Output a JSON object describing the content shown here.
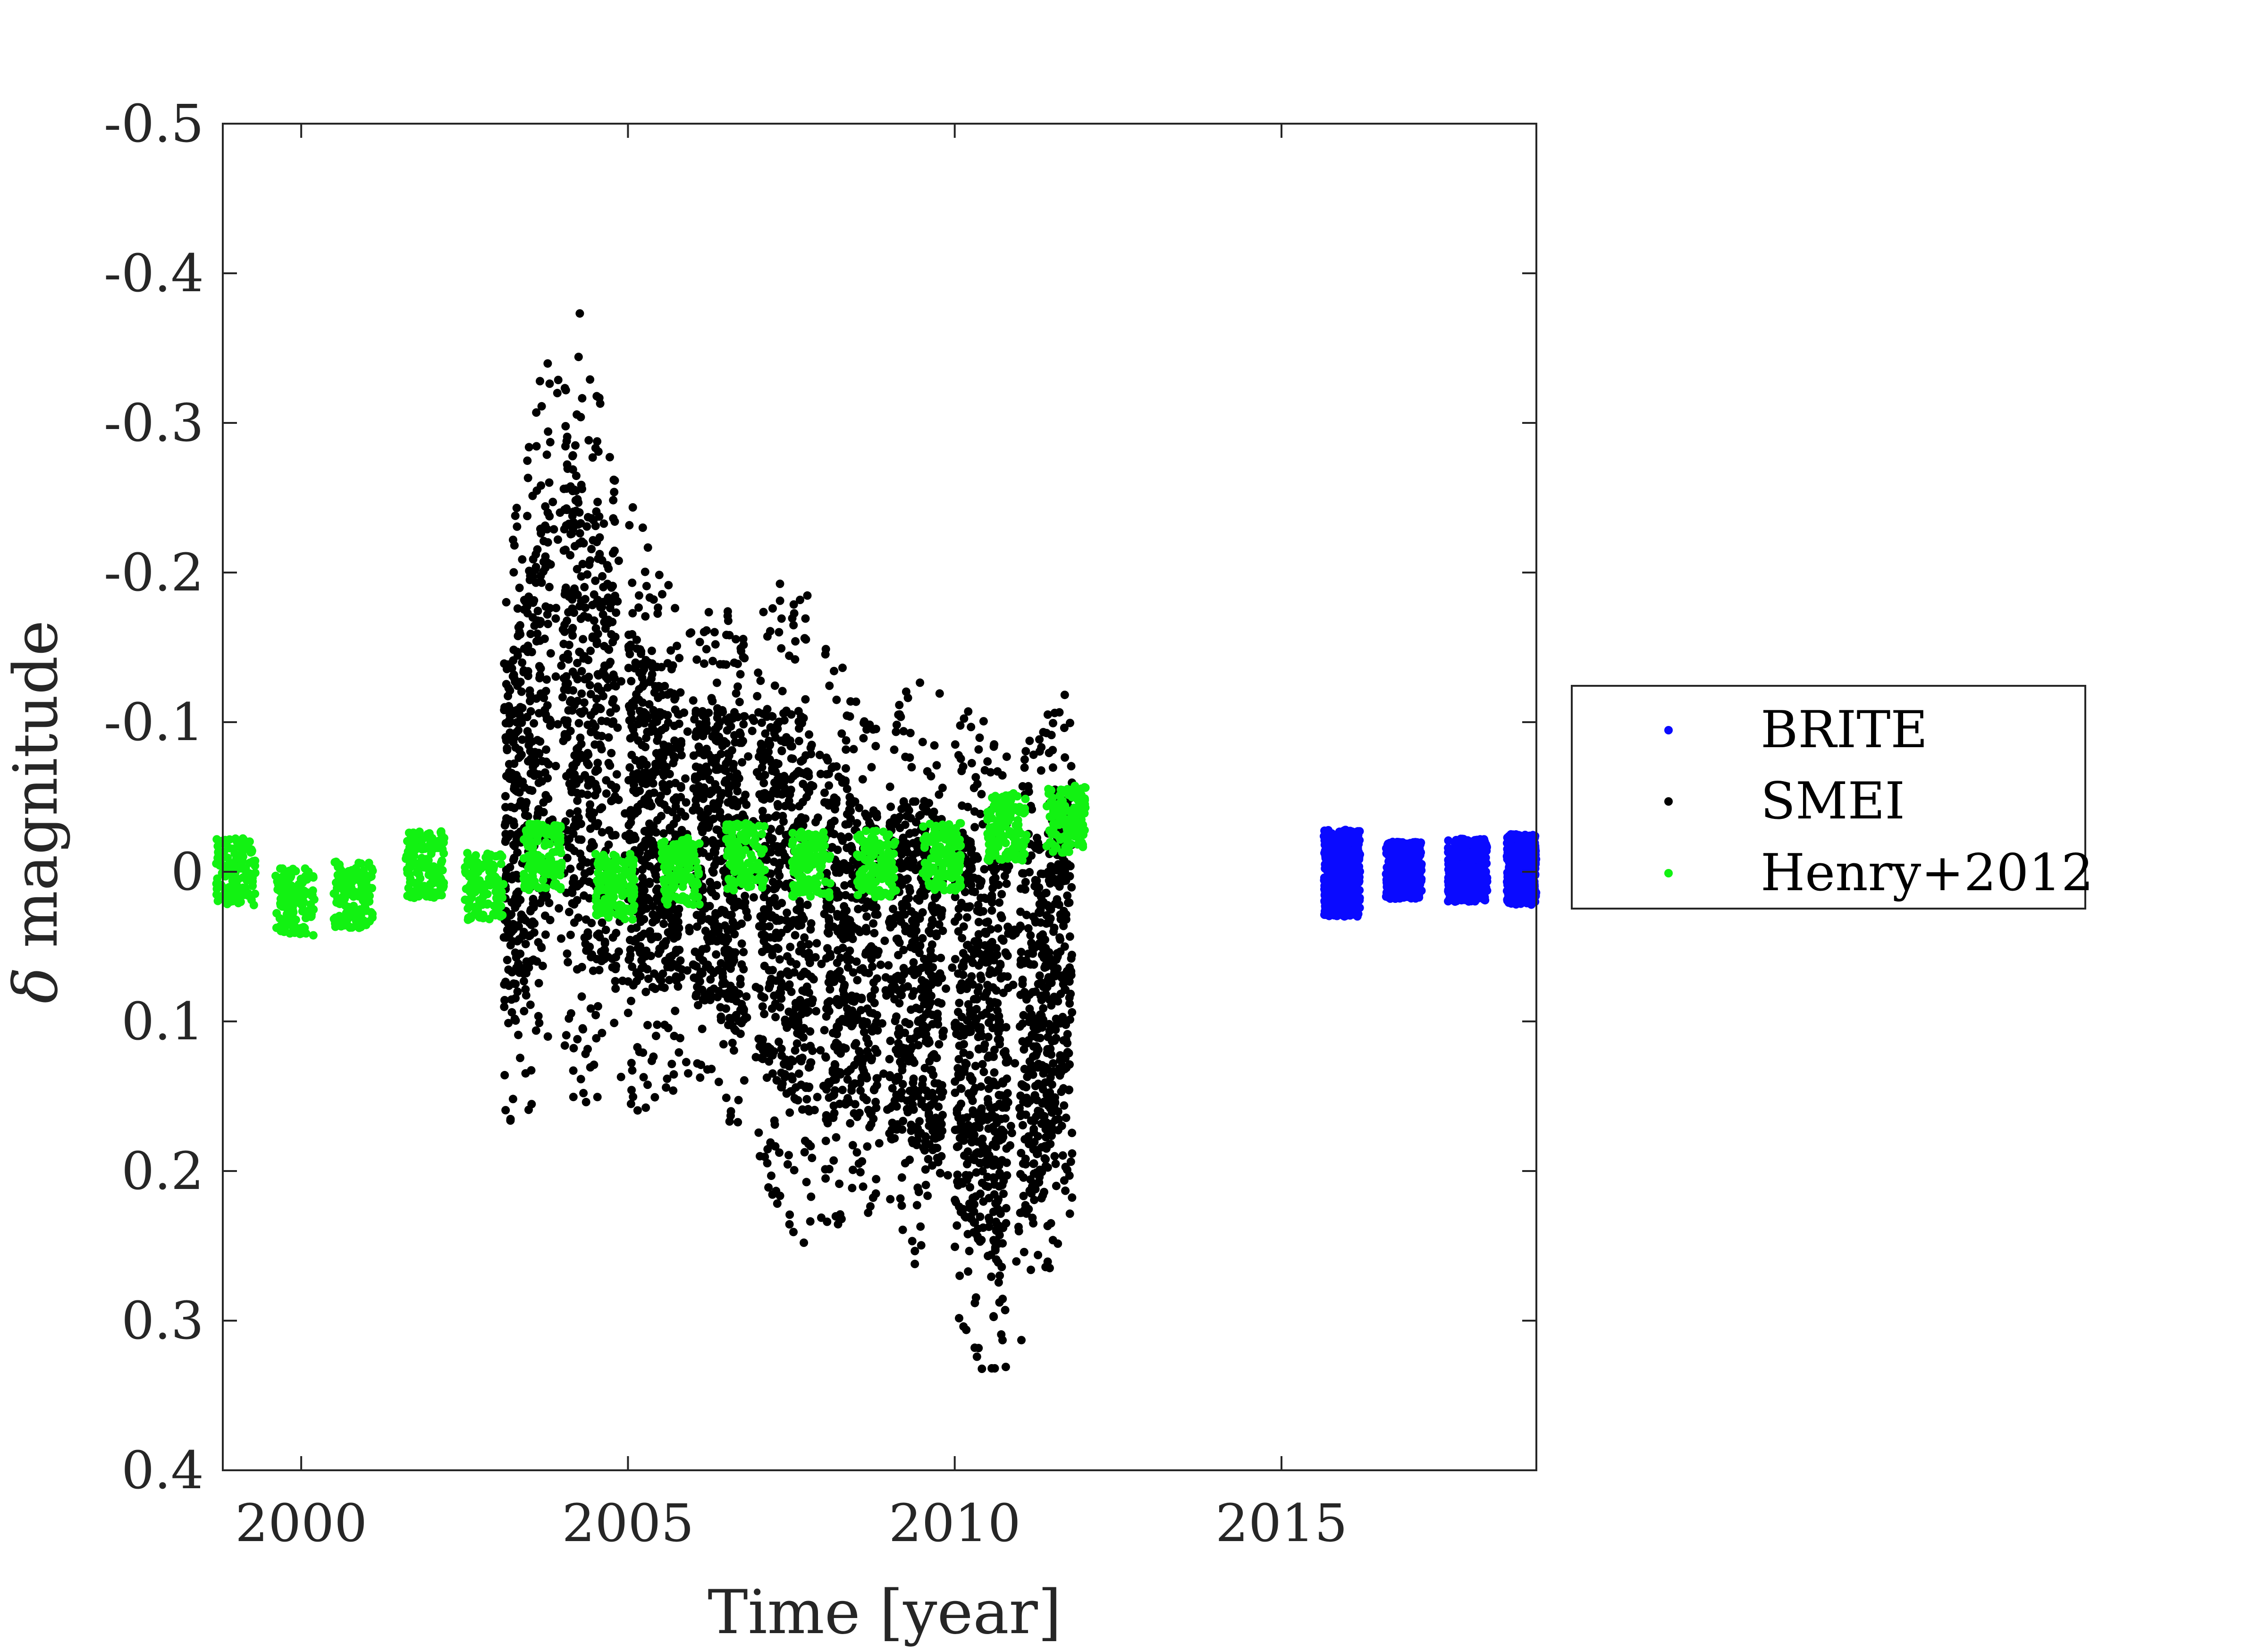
{
  "chart_data": {
    "type": "scatter",
    "xlabel": "Time [year]",
    "ylabel_symbol": "δ",
    "ylabel_text": " magnitude",
    "xlim": [
      1998.8,
      2018.9
    ],
    "ylim": [
      -0.5,
      0.4
    ],
    "y_reversed": true,
    "grid": false,
    "legend_position": "right",
    "x_ticks": [
      2000,
      2005,
      2010,
      2015
    ],
    "x_tick_labels": [
      "2000",
      "2005",
      "2010",
      "2015"
    ],
    "y_ticks": [
      -0.5,
      -0.4,
      -0.3,
      -0.2,
      -0.1,
      0,
      0.1,
      0.2,
      0.3,
      0.4
    ],
    "y_tick_labels": [
      "-0.5",
      "-0.4",
      "-0.3",
      "-0.2",
      "-0.1",
      "0",
      "0.1",
      "0.2",
      "0.3",
      "0.4"
    ],
    "series": [
      {
        "name": "BRITE",
        "color": "#0a0aff",
        "segments": [
          {
            "x": [
              2015.65,
              2016.2
            ],
            "center": 0.0,
            "spread": [
              -0.028,
              0.03
            ]
          },
          {
            "x": [
              2016.6,
              2017.15
            ],
            "center": 0.0,
            "spread": [
              -0.02,
              0.018
            ]
          },
          {
            "x": [
              2017.55,
              2018.15
            ],
            "center": 0.0,
            "spread": [
              -0.022,
              0.02
            ]
          },
          {
            "x": [
              2018.45,
              2018.9
            ],
            "center": 0.0,
            "spread": [
              -0.025,
              0.022
            ]
          }
        ]
      },
      {
        "name": "SMEI",
        "color": "#000000",
        "range": [
          2003.1,
          2011.8
        ],
        "envelope": [
          {
            "x": 2003.2,
            "min": -0.22,
            "max": 0.17
          },
          {
            "x": 2004.0,
            "min": -0.42,
            "max": 0.15
          },
          {
            "x": 2004.9,
            "min": -0.26,
            "max": 0.17
          },
          {
            "x": 2005.9,
            "min": -0.17,
            "max": 0.14
          },
          {
            "x": 2006.8,
            "min": -0.18,
            "max": 0.19
          },
          {
            "x": 2007.6,
            "min": -0.2,
            "max": 0.25
          },
          {
            "x": 2008.6,
            "min": -0.11,
            "max": 0.24
          },
          {
            "x": 2009.6,
            "min": -0.13,
            "max": 0.27
          },
          {
            "x": 2010.5,
            "min": -0.1,
            "max": 0.35
          },
          {
            "x": 2011.1,
            "min": -0.09,
            "max": 0.31
          },
          {
            "x": 2011.7,
            "min": -0.12,
            "max": 0.24
          }
        ]
      },
      {
        "name": "Henry+2012",
        "color": "#12f212",
        "points": [
          [
            1999.0,
            0.0
          ],
          [
            1999.9,
            0.02
          ],
          [
            2000.8,
            0.015
          ],
          [
            2001.9,
            -0.005
          ],
          [
            2002.8,
            0.01
          ],
          [
            2003.7,
            -0.01
          ],
          [
            2004.8,
            0.01
          ],
          [
            2005.8,
            0.0
          ],
          [
            2006.8,
            -0.01
          ],
          [
            2007.8,
            -0.005
          ],
          [
            2008.8,
            -0.005
          ],
          [
            2009.8,
            -0.01
          ],
          [
            2010.8,
            -0.03
          ],
          [
            2011.7,
            -0.035
          ]
        ]
      }
    ]
  }
}
